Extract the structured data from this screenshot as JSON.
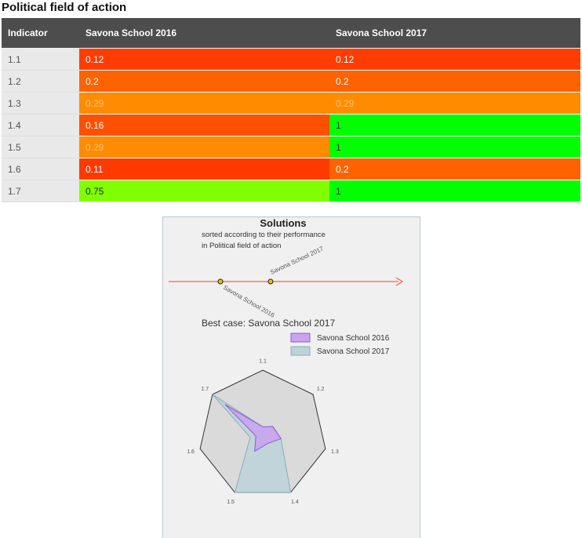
{
  "page": {
    "title": "Political field of action"
  },
  "table": {
    "headers": [
      "Indicator",
      "Savona School 2016",
      "Savona School 2017"
    ],
    "rows": [
      {
        "indicator": "1.1",
        "v2016": "0.12",
        "v2017": "0.12",
        "c2016": "#ff3d00",
        "c2017": "#ff3d00"
      },
      {
        "indicator": "1.2",
        "v2016": "0.2",
        "v2017": "0.2",
        "c2016": "#ff6200",
        "c2017": "#ff6200"
      },
      {
        "indicator": "1.3",
        "v2016": "0.29",
        "v2017": "0.29",
        "c2016": "#ff8c00",
        "c2017": "#ff8c00"
      },
      {
        "indicator": "1.4",
        "v2016": "0.16",
        "v2017": "1",
        "c2016": "#ff5000",
        "c2017": "#00ff00"
      },
      {
        "indicator": "1.5",
        "v2016": "0.29",
        "v2017": "1",
        "c2016": "#ff8c00",
        "c2017": "#00ff00"
      },
      {
        "indicator": "1.6",
        "v2016": "0.11",
        "v2017": "0.2",
        "c2016": "#ff3a00",
        "c2017": "#ff6200"
      },
      {
        "indicator": "1.7",
        "v2016": "0.75",
        "v2017": "1",
        "c2016": "#80ff00",
        "c2017": "#00ff00"
      }
    ]
  },
  "solutions": {
    "title": "Solutions",
    "subtitle_line1": "sorted according to their performance",
    "subtitle_line2": "in Political field of action",
    "best_case": "Best case: Savona School 2017",
    "axis_colors": {
      "arrow": "#e8664f",
      "marker": "#f2c200"
    }
  },
  "chart_data": [
    {
      "type": "scatter",
      "title": "Solutions",
      "subtitle": "sorted according to their performance in Political field of action",
      "points": [
        {
          "label": "Savona School 2016",
          "rank": 1
        },
        {
          "label": "Savona School 2017",
          "rank": 2
        }
      ]
    },
    {
      "type": "radar",
      "axes": [
        "1.1",
        "1.2",
        "1.3",
        "1.4",
        "1.5",
        "1.6",
        "1.7"
      ],
      "range": [
        0,
        1
      ],
      "series": [
        {
          "name": "Savona School 2016",
          "values": [
            0.12,
            0.2,
            0.29,
            0.16,
            0.29,
            0.11,
            0.75
          ],
          "fill": "#c9a4ef",
          "stroke": "#8a5ecf"
        },
        {
          "name": "Savona School 2017",
          "values": [
            0.12,
            0.2,
            0.29,
            1,
            1,
            0.2,
            1
          ],
          "fill": "#bdd3d8",
          "stroke": "#88aeb8"
        }
      ]
    }
  ]
}
